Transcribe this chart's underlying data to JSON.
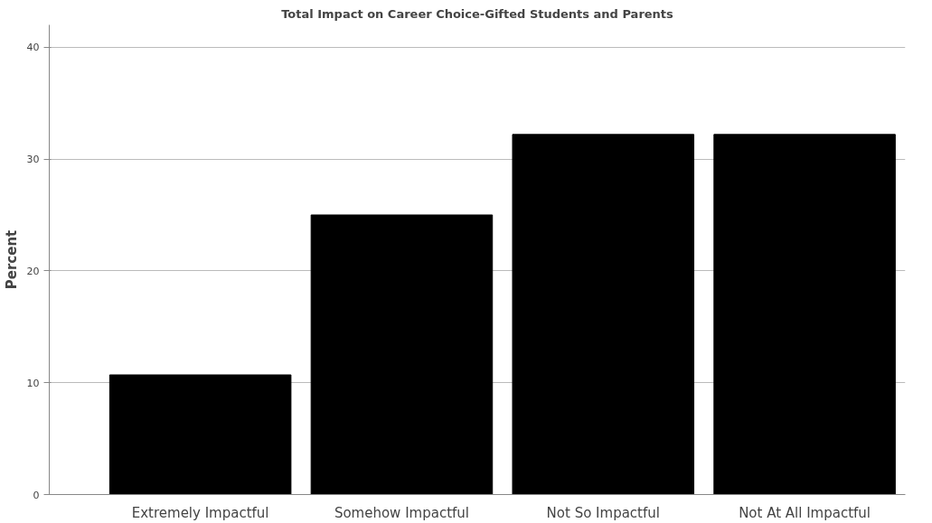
{
  "chart_data": {
    "type": "bar",
    "title": "Total Impact on Career Choice-Gifted Students and Parents",
    "ylabel": "Percent",
    "categories": [
      "Extremely Impactful",
      "Somehow Impactful",
      "Not So Impactful",
      "Not At All Impactful"
    ],
    "values": [
      10.7,
      25.0,
      32.2,
      32.2
    ],
    "color": "#000000",
    "ylim": [
      0,
      42
    ],
    "yticks": [
      0,
      10,
      20,
      30,
      40
    ],
    "grid": "y"
  }
}
